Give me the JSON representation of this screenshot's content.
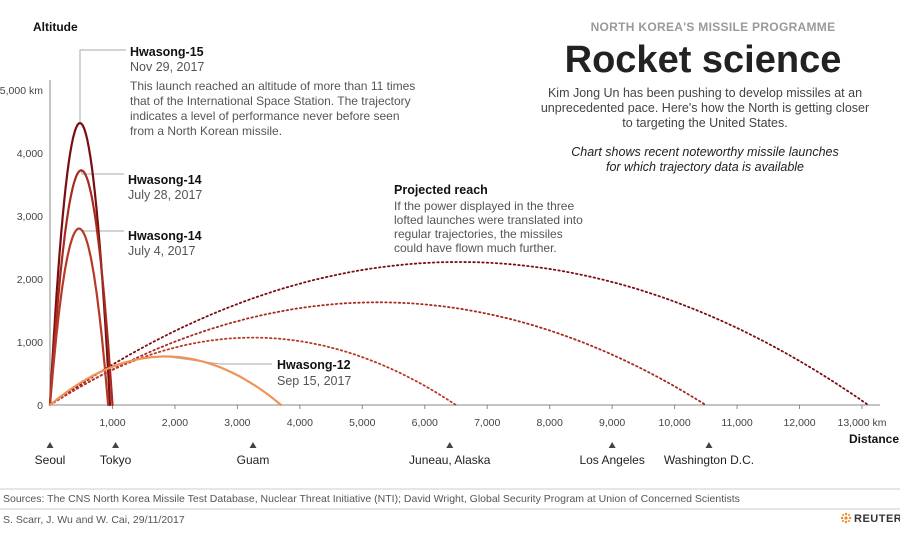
{
  "header": {
    "kicker": "NORTH KOREA'S MISSILE PROGRAMME",
    "title": "Rocket science",
    "intro_lines": [
      "Kim Jong Un has been pushing to develop missiles at an",
      "unprecedented pace. Here's how the North is getting closer",
      "to targeting the United States."
    ],
    "note_lines": [
      "Chart shows recent noteworthy missile launches",
      "for which trajectory data is available"
    ]
  },
  "chart_data": {
    "type": "line",
    "title": "Rocket science",
    "ylabel": "Altitude",
    "xlabel": "Distance",
    "xlim": [
      0,
      13500
    ],
    "ylim": [
      0,
      5000
    ],
    "x_ticks": [
      0,
      1000,
      2000,
      3000,
      4000,
      5000,
      6000,
      7000,
      8000,
      9000,
      10000,
      11000,
      12000,
      13000
    ],
    "x_tick_labels": [
      "",
      "1,000",
      "2,000",
      "3,000",
      "4,000",
      "5,000",
      "6,000",
      "7,000",
      "8,000",
      "9,000",
      "10,000",
      "11,000",
      "12,000",
      "13,000 km"
    ],
    "y_ticks": [
      0,
      1000,
      2000,
      3000,
      4000,
      5000
    ],
    "y_tick_labels": [
      "0",
      "1,000",
      "2,000",
      "3,000",
      "4,000",
      "5,000 km"
    ],
    "series": [
      {
        "name": "Hwasong-15",
        "date": "Nov 29, 2017",
        "kind": "actual",
        "range_km": 960,
        "apogee_km": 4475,
        "color": "#7a0d12"
      },
      {
        "name": "Hwasong-14",
        "date": "July 28, 2017",
        "kind": "actual",
        "range_km": 1000,
        "apogee_km": 3725,
        "color": "#a82a1f"
      },
      {
        "name": "Hwasong-14",
        "date": "July 4, 2017",
        "kind": "actual",
        "range_km": 930,
        "apogee_km": 2800,
        "color": "#b73a26"
      },
      {
        "name": "Hwasong-12",
        "date": "Sep 15, 2017",
        "kind": "actual",
        "range_km": 3700,
        "apogee_km": 770,
        "color": "#f0935a"
      },
      {
        "name": "Projected reach (Hwasong-15)",
        "kind": "projected",
        "range_km": 13100,
        "apogee_km": 2270,
        "color": "#7a0d12"
      },
      {
        "name": "Projected reach (Hwasong-14, July 28)",
        "kind": "projected",
        "range_km": 10500,
        "apogee_km": 1630,
        "color": "#a82a1f"
      },
      {
        "name": "Projected reach (Hwasong-14, July 4)",
        "kind": "projected",
        "range_km": 6500,
        "apogee_km": 1070,
        "color": "#b73a26"
      }
    ],
    "annotations": [
      {
        "id": "hw15",
        "name": "Hwasong-15",
        "date": "Nov 29, 2017",
        "desc_lines": [
          "This launch reached an altitude of more than 11 times",
          "that of the International Space Station. The trajectory",
          "indicates a level of performance never before seen",
          "from a North Korean missile."
        ]
      },
      {
        "id": "hw14b",
        "name": "Hwasong-14",
        "date": "July 28, 2017",
        "desc_lines": []
      },
      {
        "id": "hw14a",
        "name": "Hwasong-14",
        "date": "July 4, 2017",
        "desc_lines": []
      },
      {
        "id": "hw12",
        "name": "Hwasong-12",
        "date": "Sep 15, 2017",
        "desc_lines": []
      },
      {
        "id": "proj",
        "name": "Projected reach",
        "date": "",
        "desc_lines": [
          "If the power displayed in the three",
          "lofted launches were translated into",
          "regular trajectories, the missiles",
          "could have flown much further."
        ]
      }
    ],
    "cities": [
      {
        "name": "Seoul",
        "distance_km": 0
      },
      {
        "name": "Tokyo",
        "distance_km": 1050
      },
      {
        "name": "Guam",
        "distance_km": 3250
      },
      {
        "name": "Juneau, Alaska",
        "distance_km": 6400
      },
      {
        "name": "Los Angeles",
        "distance_km": 9000
      },
      {
        "name": "Washington D.C.",
        "distance_km": 10550
      }
    ]
  },
  "footer": {
    "sources": "Sources: The CNS North Korea Missile Test Database, Nuclear Threat Initiative (NTI); David Wright, Global Security Program at Union of Concerned Scientists",
    "credit": "S. Scarr, J. Wu and W. Cai,  29/11/2017",
    "brand": "REUTERS"
  }
}
